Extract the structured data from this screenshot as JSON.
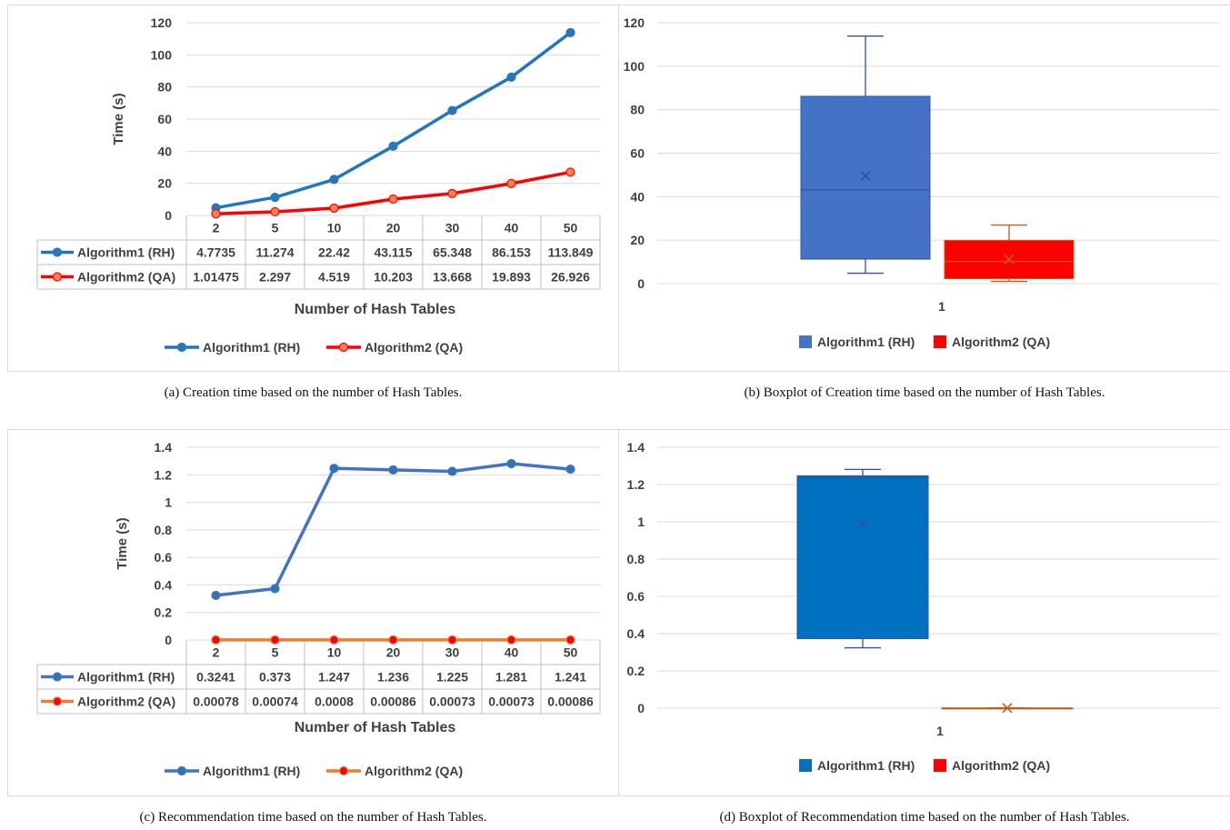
{
  "panels": [
    {
      "caption": "(a)  Creation time based on the number of Hash Tables.",
      "chart_data": {
        "type": "line",
        "x": [
          "2",
          "5",
          "10",
          "20",
          "30",
          "40",
          "50"
        ],
        "ylabel": "Time (s)",
        "xlabel": "Number of Hash Tables",
        "ylim": [
          0,
          120
        ],
        "yticks": [
          "0",
          "20",
          "40",
          "60",
          "80",
          "100",
          "120"
        ],
        "grid": true,
        "legend": "bottom",
        "series": [
          {
            "name": "Algorithm1 (RH)",
            "color": "#1f77c4",
            "marker_fill": "#2e75b6",
            "labels": [
              "4.7735",
              "11.274",
              "22.42",
              "43.115",
              "65.348",
              "86.153",
              "113.849"
            ],
            "values": [
              4.7735,
              11.274,
              22.42,
              43.115,
              65.348,
              86.153,
              113.849
            ]
          },
          {
            "name": "Algorithm2 (QA)",
            "color": "#ff0000",
            "marker_fill": "#ff7f50",
            "labels": [
              "1.01475",
              "2.297",
              "4.519",
              "10.203",
              "13.668",
              "19.893",
              "26.926"
            ],
            "values": [
              1.01475,
              2.297,
              4.519,
              10.203,
              13.668,
              19.893,
              26.926
            ]
          }
        ]
      }
    },
    {
      "caption": "(b)  Boxplot of Creation time based on the number of Hash Tables.",
      "chart_data": {
        "type": "boxplot",
        "categories": [
          "1"
        ],
        "ylim": [
          0,
          120
        ],
        "yticks": [
          "0",
          "20",
          "40",
          "60",
          "80",
          "100",
          "120"
        ],
        "grid": true,
        "legend": "bottom",
        "series": [
          {
            "name": "Algorithm1 (RH)",
            "color": "#4472c4",
            "edge": "#2f5597",
            "min": 4.7735,
            "q1": 11.274,
            "median": 43.115,
            "q3": 86.153,
            "max": 113.849,
            "mean": 49.56
          },
          {
            "name": "Algorithm2 (QA)",
            "color": "#ff0000",
            "edge": "#c55a11",
            "min": 1.01475,
            "q1": 2.297,
            "median": 10.203,
            "q3": 19.893,
            "max": 26.926,
            "mean": 11.22
          }
        ]
      }
    },
    {
      "caption": "(c)  Recommendation time based on the number of Hash Tables.",
      "chart_data": {
        "type": "line",
        "x": [
          "2",
          "5",
          "10",
          "20",
          "30",
          "40",
          "50"
        ],
        "ylabel": "Time (s)",
        "xlabel": "Number of Hash Tables",
        "ylim": [
          0,
          1.4
        ],
        "yticks": [
          "0",
          "0.2",
          "0.4",
          "0.6",
          "0.8",
          "1",
          "1.2",
          "1.4"
        ],
        "grid": true,
        "legend": "bottom",
        "series": [
          {
            "name": "Algorithm1 (RH)",
            "color": "#4472c4",
            "marker_fill": "#2e75b6",
            "labels": [
              "0.3241",
              "0.373",
              "1.247",
              "1.236",
              "1.225",
              "1.281",
              "1.241"
            ],
            "values": [
              0.3241,
              0.373,
              1.247,
              1.236,
              1.225,
              1.281,
              1.241
            ]
          },
          {
            "name": "Algorithm2 (QA)",
            "color": "#ed7d31",
            "marker_fill": "#ff0000",
            "labels": [
              "0.00078",
              "0.00074",
              "0.0008",
              "0.00086",
              "0.00073",
              "0.00073",
              "0.00086"
            ],
            "values": [
              0.00078,
              0.00074,
              0.0008,
              0.00086,
              0.00073,
              0.00073,
              0.00086
            ]
          }
        ]
      }
    },
    {
      "caption": "(d)  Boxplot of Recommendation time based on the number of Hash Tables.",
      "chart_data": {
        "type": "boxplot",
        "categories": [
          "1"
        ],
        "ylim": [
          0,
          1.4
        ],
        "yticks": [
          "0",
          "0.2",
          "0.4",
          "0.6",
          "0.8",
          "1",
          "1.2",
          "1.4"
        ],
        "grid": true,
        "legend": "bottom",
        "series": [
          {
            "name": "Algorithm1 (RH)",
            "color": "#0070c0",
            "edge": "#2f5597",
            "min": 0.3241,
            "q1": 0.373,
            "median": 1.236,
            "q3": 1.247,
            "max": 1.281,
            "mean": 0.99
          },
          {
            "name": "Algorithm2 (QA)",
            "color": "#ff0000",
            "edge": "#c55a11",
            "min": 0.00073,
            "q1": 0.00073,
            "median": 0.00078,
            "q3": 0.00086,
            "max": 0.00086,
            "mean": 0.00079
          }
        ]
      }
    }
  ]
}
